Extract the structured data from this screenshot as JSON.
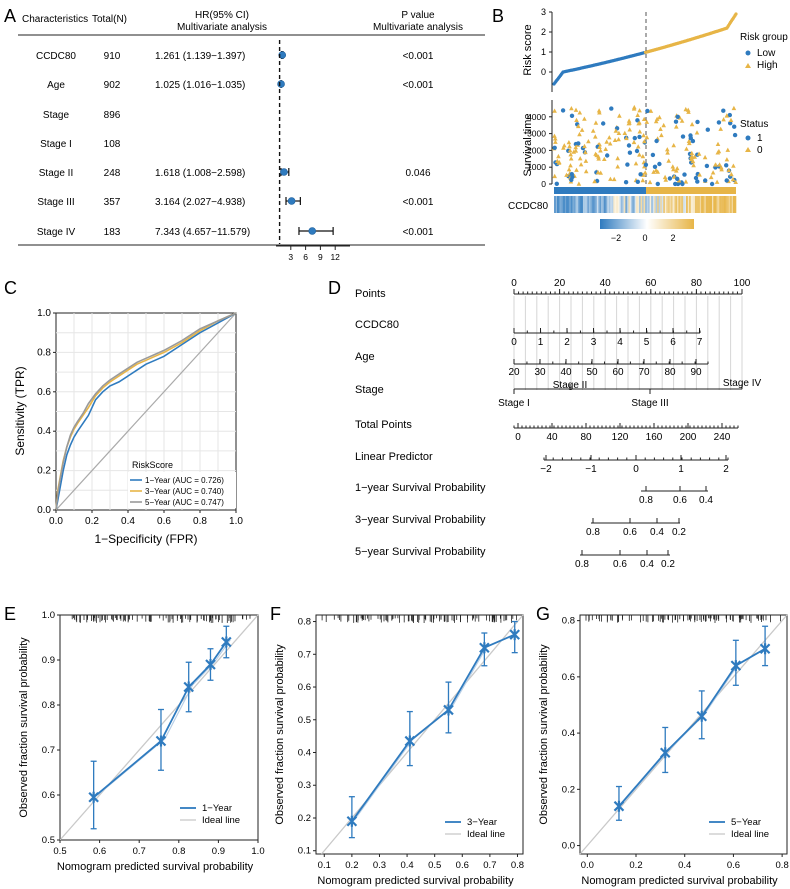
{
  "colors": {
    "blue": "#2f7bbf",
    "orange": "#e7b547",
    "gray": "#aaaaaa",
    "light": "#b8cfe6"
  },
  "panel_letters": [
    "A",
    "B",
    "C",
    "D",
    "E",
    "F",
    "G"
  ],
  "chart_data": [
    {
      "id": "A",
      "type": "forest",
      "headers": {
        "char": "Characteristics",
        "total": "Total(N)",
        "hr1": "HR(95% CI)",
        "hr2": "Multivariate analysis",
        "p1": "P value",
        "p2": "Multivariate analysis"
      },
      "rows": [
        {
          "label": "CCDC80",
          "n": "910",
          "hr_text": "1.261 (1.139−1.397)",
          "p": "<0.001",
          "hr": 1.261,
          "lo": 1.139,
          "hi": 1.397
        },
        {
          "label": "Age",
          "n": "902",
          "hr_text": "1.025 (1.016−1.035)",
          "p": "<0.001",
          "hr": 1.025,
          "lo": 1.016,
          "hi": 1.035
        },
        {
          "label": "Stage",
          "n": "896",
          "hr_text": "",
          "p": ""
        },
        {
          "label": "Stage I",
          "n": "108",
          "hr_text": "",
          "p": ""
        },
        {
          "label": "Stage II",
          "n": "248",
          "hr_text": "1.618 (1.008−2.598)",
          "p": "0.046",
          "hr": 1.618,
          "lo": 1.008,
          "hi": 2.598
        },
        {
          "label": "Stage III",
          "n": "357",
          "hr_text": "3.164 (2.027−4.938)",
          "p": "<0.001",
          "hr": 3.164,
          "lo": 2.027,
          "hi": 4.938
        },
        {
          "label": "Stage IV",
          "n": "183",
          "hr_text": "7.343 (4.657−11.579)",
          "p": "<0.001",
          "hr": 7.343,
          "lo": 4.657,
          "hi": 11.579
        }
      ],
      "x_ticks": [
        "3",
        "6",
        "9",
        "12"
      ],
      "xlim": [
        0,
        15
      ],
      "ref_line": 1
    },
    {
      "id": "B",
      "type": "risk_plot",
      "risk_ylabel": "Risk score",
      "risk_yticks": [
        "0",
        "1",
        "2",
        "3"
      ],
      "risk_ylim": [
        -1,
        3
      ],
      "legend1_title": "Risk group",
      "legend1": [
        "Low",
        "High"
      ],
      "surv_ylabel": "Survival time",
      "surv_yticks": [
        "0",
        "1000",
        "2000",
        "3000",
        "4000"
      ],
      "surv_ylim": [
        0,
        5000
      ],
      "legend2_title": "Status",
      "legend2": [
        "1",
        "0"
      ],
      "heatmap_label": "CCDC80",
      "colorbar_ticks": [
        "−2",
        "0",
        "2"
      ],
      "cutoff_fraction": 0.5
    },
    {
      "id": "C",
      "type": "roc",
      "xlabel": "1−Specificity (FPR)",
      "ylabel": "Sensitivity (TPR)",
      "ticks": [
        "0.0",
        "0.2",
        "0.4",
        "0.6",
        "0.8",
        "1.0"
      ],
      "legend_title": "RiskScore",
      "series": [
        {
          "name": "1−Year (AUC = 0.726)",
          "color": "#2f7bbf",
          "x": [
            0,
            0.01,
            0.02,
            0.04,
            0.06,
            0.08,
            0.1,
            0.12,
            0.15,
            0.18,
            0.22,
            0.26,
            0.3,
            0.35,
            0.4,
            0.45,
            0.5,
            0.55,
            0.6,
            0.7,
            0.8,
            0.9,
            1.0
          ],
          "y": [
            0,
            0.05,
            0.1,
            0.2,
            0.28,
            0.33,
            0.37,
            0.4,
            0.44,
            0.48,
            0.56,
            0.6,
            0.63,
            0.65,
            0.68,
            0.71,
            0.74,
            0.76,
            0.78,
            0.84,
            0.9,
            0.95,
            1.0
          ]
        },
        {
          "name": "3−Year (AUC = 0.740)",
          "color": "#e7b547",
          "x": [
            0,
            0.01,
            0.02,
            0.04,
            0.06,
            0.08,
            0.1,
            0.12,
            0.15,
            0.18,
            0.22,
            0.26,
            0.3,
            0.35,
            0.4,
            0.45,
            0.5,
            0.55,
            0.6,
            0.7,
            0.8,
            0.9,
            1.0
          ],
          "y": [
            0,
            0.1,
            0.15,
            0.25,
            0.32,
            0.37,
            0.41,
            0.44,
            0.48,
            0.52,
            0.58,
            0.62,
            0.65,
            0.68,
            0.71,
            0.74,
            0.76,
            0.78,
            0.8,
            0.85,
            0.91,
            0.96,
            1.0
          ]
        },
        {
          "name": "5−Year (AUC = 0.747)",
          "color": "#9a9a9a",
          "x": [
            0,
            0.01,
            0.02,
            0.04,
            0.06,
            0.08,
            0.1,
            0.12,
            0.15,
            0.18,
            0.22,
            0.26,
            0.3,
            0.35,
            0.4,
            0.45,
            0.5,
            0.55,
            0.6,
            0.7,
            0.8,
            0.9,
            1.0
          ],
          "y": [
            0,
            0.08,
            0.14,
            0.24,
            0.32,
            0.38,
            0.42,
            0.45,
            0.49,
            0.54,
            0.59,
            0.63,
            0.66,
            0.69,
            0.72,
            0.75,
            0.77,
            0.79,
            0.81,
            0.86,
            0.92,
            0.96,
            1.0
          ]
        }
      ]
    },
    {
      "id": "D",
      "type": "nomogram",
      "row_labels": [
        "Points",
        "CCDC80",
        "Age",
        "Stage",
        "Total Points",
        "Linear Predictor",
        "1−year Survival Probability",
        "3−year Survival Probability",
        "5−year Survival Probability"
      ],
      "points_ticks": [
        "0",
        "20",
        "40",
        "60",
        "80",
        "100"
      ],
      "ccdc80_ticks": [
        "0",
        "1",
        "2",
        "3",
        "4",
        "5",
        "6",
        "7"
      ],
      "age_ticks": [
        "20",
        "30",
        "40",
        "50",
        "60",
        "70",
        "80",
        "90"
      ],
      "stage_labels": [
        "Stage I",
        "Stage II",
        "Stage III",
        "Stage IV"
      ],
      "total_ticks": [
        "0",
        "40",
        "80",
        "120",
        "160",
        "200",
        "240"
      ],
      "lp_ticks": [
        "−2",
        "−1",
        "0",
        "1",
        "2"
      ],
      "s1_ticks": [
        "0.8",
        "0.6",
        "0.4"
      ],
      "s3_ticks": [
        "0.8",
        "0.6",
        "0.4",
        "0.2"
      ],
      "s5_ticks": [
        "0.8",
        "0.6",
        "0.4",
        "0.2"
      ]
    },
    {
      "id": "E",
      "type": "calibration",
      "xlabel": "Nomogram predicted survival probability",
      "ylabel": "Observed fraction survival probability",
      "xticks": [
        "0.5",
        "0.6",
        "0.7",
        "0.8",
        "0.9",
        "1.0"
      ],
      "yticks": [
        "0.5",
        "0.6",
        "0.7",
        "0.8",
        "0.9",
        "1.0"
      ],
      "xlim": [
        0.5,
        1.0
      ],
      "ylim": [
        0.5,
        1.0
      ],
      "x": [
        0.585,
        0.755,
        0.825,
        0.88,
        0.92
      ],
      "y": [
        0.595,
        0.72,
        0.84,
        0.89,
        0.94
      ],
      "lo": [
        0.525,
        0.655,
        0.785,
        0.855,
        0.905
      ],
      "hi": [
        0.675,
        0.79,
        0.895,
        0.925,
        0.975
      ],
      "legend": [
        "1−Year",
        "Ideal line"
      ]
    },
    {
      "id": "F",
      "type": "calibration",
      "xlabel": "Nomogram predicted survival probability",
      "ylabel": "Observed fraction survival probability",
      "xticks": [
        "0.1",
        "0.2",
        "0.3",
        "0.4",
        "0.5",
        "0.6",
        "0.7",
        "0.8"
      ],
      "yticks": [
        "0.1",
        "0.2",
        "0.3",
        "0.4",
        "0.5",
        "0.6",
        "0.7",
        "0.8"
      ],
      "xlim": [
        0.07,
        0.82
      ],
      "ylim": [
        0.09,
        0.82
      ],
      "x": [
        0.2,
        0.41,
        0.55,
        0.68,
        0.79
      ],
      "y": [
        0.19,
        0.435,
        0.53,
        0.72,
        0.76
      ],
      "lo": [
        0.14,
        0.36,
        0.46,
        0.665,
        0.705
      ],
      "hi": [
        0.265,
        0.525,
        0.615,
        0.765,
        0.8
      ],
      "legend": [
        "3−Year",
        "Ideal line"
      ]
    },
    {
      "id": "G",
      "type": "calibration",
      "xlabel": "Nomogram predicted survival probability",
      "ylabel": "Observed fraction survival probability",
      "xticks": [
        "0.0",
        "0.2",
        "0.4",
        "0.6",
        "0.8"
      ],
      "yticks": [
        "0.0",
        "0.2",
        "0.4",
        "0.6",
        "0.8"
      ],
      "xlim": [
        -0.03,
        0.82
      ],
      "ylim": [
        -0.03,
        0.82
      ],
      "x": [
        0.13,
        0.32,
        0.47,
        0.61,
        0.73
      ],
      "y": [
        0.14,
        0.33,
        0.46,
        0.64,
        0.7
      ],
      "lo": [
        0.09,
        0.26,
        0.38,
        0.57,
        0.64
      ],
      "hi": [
        0.21,
        0.42,
        0.55,
        0.73,
        0.78
      ],
      "legend": [
        "5−Year",
        "Ideal line"
      ]
    }
  ]
}
